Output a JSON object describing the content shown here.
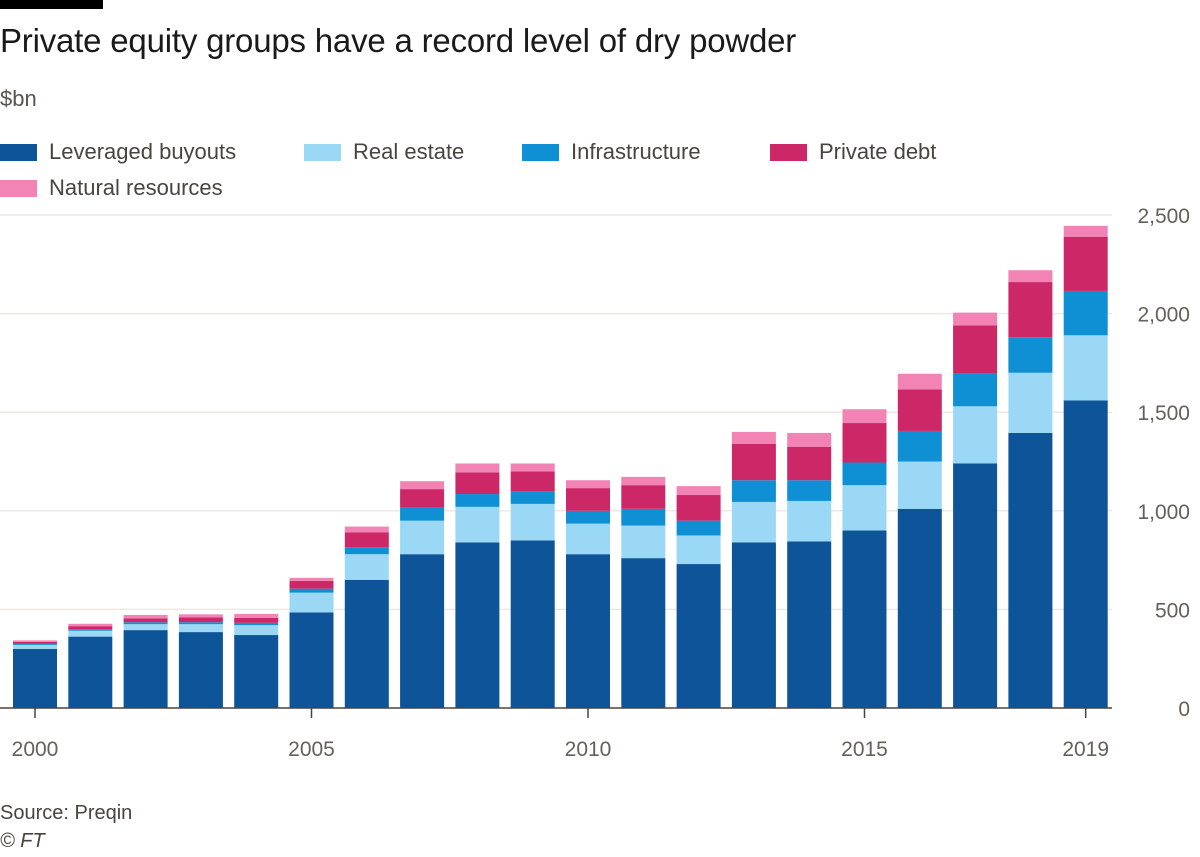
{
  "title": "Private equity groups have a record level of dry powder",
  "unit_label": "$bn",
  "source": "Source: Preqin",
  "credit": "© FT",
  "colors": {
    "leveraged_buyouts": "#0d5499",
    "real_estate": "#9ad8f6",
    "infrastructure": "#0f8fd4",
    "private_debt": "#cc2867",
    "natural_resources": "#f283b5",
    "gridline": "#efe7e3",
    "axis": "#4a4441",
    "tick_text": "#66605c"
  },
  "legend": [
    {
      "label": "Leveraged buyouts",
      "color_key": "leveraged_buyouts"
    },
    {
      "label": "Real estate",
      "color_key": "real_estate"
    },
    {
      "label": "Infrastructure",
      "color_key": "infrastructure"
    },
    {
      "label": "Private debt",
      "color_key": "private_debt"
    },
    {
      "label": "Natural resources",
      "color_key": "natural_resources"
    }
  ],
  "chart_data": {
    "type": "bar",
    "stacked": true,
    "title": "Private equity groups have a record level of dry powder",
    "ylabel": "$bn",
    "xlabel": "",
    "ylim": [
      0,
      2500
    ],
    "yticks": [
      0,
      500,
      1000,
      1500,
      2000,
      2500
    ],
    "ytick_labels": [
      "0",
      "500",
      "1,000",
      "1,500",
      "2,000",
      "2,500"
    ],
    "y_axis_side": "right",
    "grid": true,
    "legend_position": "top-left",
    "categories": [
      "2000",
      "2001",
      "2002",
      "2003",
      "2004",
      "2005",
      "2006",
      "2007",
      "2008",
      "2009",
      "2010",
      "2011",
      "2012",
      "2013",
      "2014",
      "2015",
      "2016",
      "2017",
      "2018",
      "2019"
    ],
    "xtick_labels": [
      {
        "category": "2000",
        "label": "2000"
      },
      {
        "category": "2005",
        "label": "2005"
      },
      {
        "category": "2010",
        "label": "2010"
      },
      {
        "category": "2015",
        "label": "2015"
      },
      {
        "category": "2019",
        "label": "2019"
      }
    ],
    "series": [
      {
        "name": "Leveraged buyouts",
        "color_key": "leveraged_buyouts",
        "values": [
          300,
          362,
          395,
          385,
          370,
          485,
          650,
          780,
          840,
          850,
          780,
          760,
          730,
          840,
          845,
          900,
          1010,
          1240,
          1395,
          1560
        ]
      },
      {
        "name": "Real estate",
        "color_key": "real_estate",
        "values": [
          20,
          30,
          30,
          40,
          50,
          100,
          130,
          170,
          180,
          185,
          155,
          165,
          145,
          205,
          205,
          230,
          240,
          290,
          305,
          330
        ]
      },
      {
        "name": "Infrastructure",
        "color_key": "infrastructure",
        "values": [
          5,
          8,
          10,
          10,
          12,
          20,
          35,
          65,
          65,
          65,
          65,
          85,
          75,
          110,
          105,
          115,
          155,
          165,
          180,
          225
        ]
      },
      {
        "name": "Private debt",
        "color_key": "private_debt",
        "values": [
          10,
          15,
          20,
          25,
          25,
          40,
          75,
          95,
          110,
          100,
          115,
          120,
          130,
          185,
          170,
          200,
          210,
          245,
          280,
          275
        ]
      },
      {
        "name": "Natural resources",
        "color_key": "natural_resources",
        "values": [
          8,
          12,
          17,
          15,
          20,
          15,
          30,
          40,
          45,
          40,
          40,
          42,
          45,
          60,
          70,
          70,
          80,
          65,
          60,
          55
        ]
      }
    ]
  }
}
